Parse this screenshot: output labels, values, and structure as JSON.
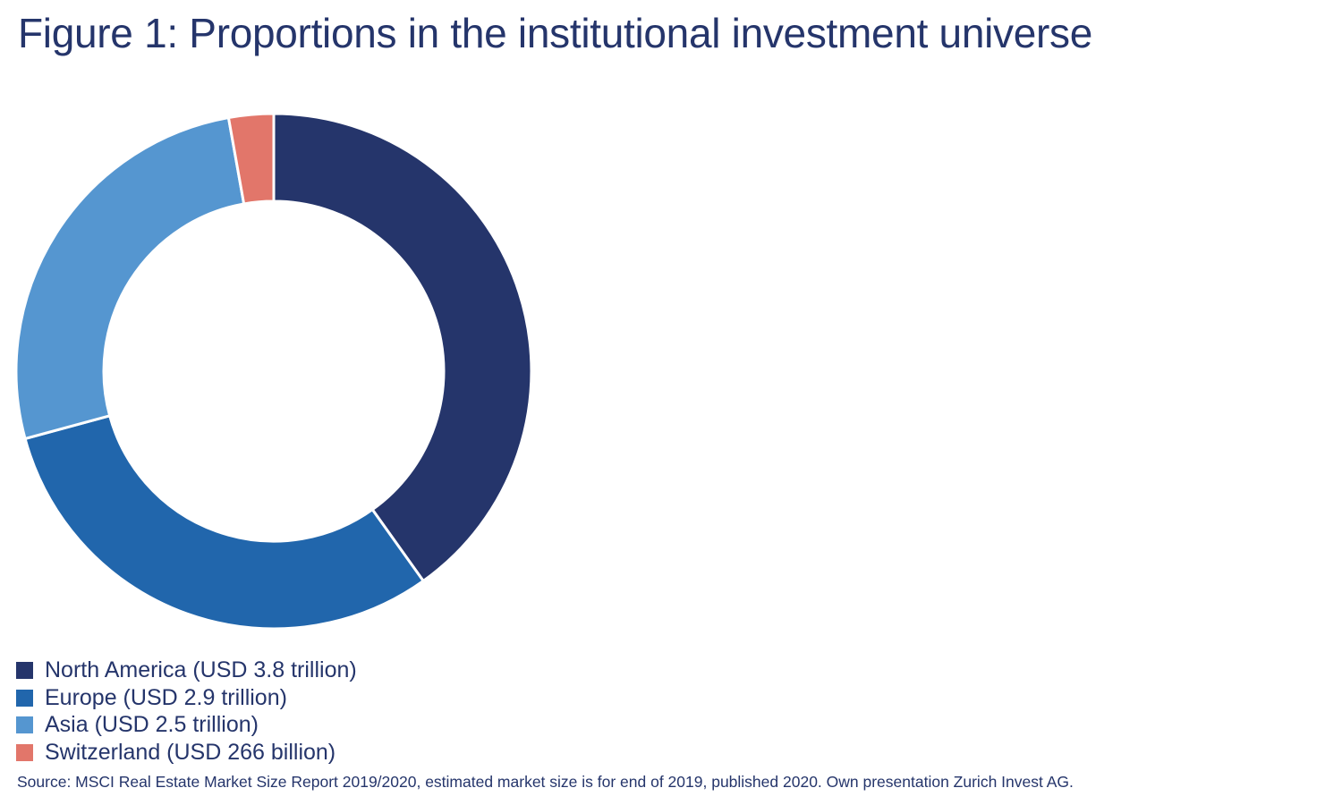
{
  "chart_data": {
    "type": "pie",
    "variant": "donut",
    "title": "Figure 1: Proportions in the institutional investment universe",
    "unit": "USD trillion",
    "categories": [
      "North America",
      "Europe",
      "Asia",
      "Switzerland"
    ],
    "values": [
      3.8,
      2.9,
      2.5,
      0.266
    ],
    "colors": [
      "#25356b",
      "#2166ac",
      "#5596d0",
      "#e2766a"
    ],
    "legend_labels": [
      "North America (USD 3.8 trillion)",
      "Europe (USD 2.9 trillion)",
      "Asia (USD 2.5 trillion)",
      "Switzerland (USD 266 billion)"
    ],
    "legend_position": "bottom-left",
    "start": "top, clockwise",
    "source": "Source: MSCI Real Estate Market Size Report 2019/2020, estimated market size is for end of 2019, published 2020. Own presentation Zurich Invest AG."
  }
}
